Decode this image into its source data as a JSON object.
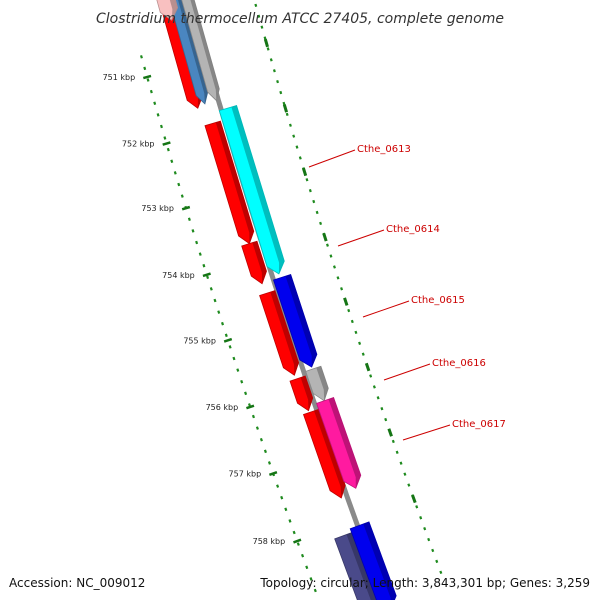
{
  "title": "Clostridium thermocellum ATCC 27405, complete genome",
  "accession": "Accession: NC_009012",
  "topology": "Topology: circular; Length: 3,843,301 bp; Genes: 3,259",
  "ruler": [
    {
      "label": "751 kbp"
    },
    {
      "label": "752 kbp"
    },
    {
      "label": "753 kbp"
    },
    {
      "label": "754 kbp"
    },
    {
      "label": "755 kbp"
    },
    {
      "label": "756 kbp"
    },
    {
      "label": "757 kbp"
    },
    {
      "label": "758 kbp"
    }
  ],
  "gene_labels": [
    {
      "label": "Cthe_0613",
      "color": "#cc0000"
    },
    {
      "label": "Cthe_0614",
      "color": "#cc0000"
    },
    {
      "label": "Cthe_0615",
      "color": "#cc0000"
    },
    {
      "label": "Cthe_0616",
      "color": "#cc0000"
    },
    {
      "label": "Cthe_0617",
      "color": "#cc0000"
    }
  ],
  "colors": {
    "backbone": "#8a8a8a",
    "ruler_dots": "#1e8a1e",
    "cds_red": "#ff0000",
    "cyan": "#00ffff",
    "blue": "#0000ee",
    "grey": "#b4b4b4",
    "pink": "#ff1aa0",
    "steelblue": "#4a86c0",
    "slate": "#4a4a8a",
    "salmon": "#f8c0c0"
  },
  "track_features": [
    {
      "name": "red-cds-arrow",
      "color": "#ff0000"
    },
    {
      "name": "steelblue-arrow",
      "color": "#4a86c0"
    },
    {
      "name": "grey-arrow",
      "color": "#b4b4b4"
    },
    {
      "name": "salmon-arrow",
      "color": "#f8c0c0"
    },
    {
      "name": "red-cds-arrow",
      "color": "#ff0000"
    },
    {
      "name": "cyan-arrow",
      "color": "#00ffff"
    },
    {
      "name": "red-cds-arrow",
      "color": "#ff0000"
    },
    {
      "name": "red-cds-arrow",
      "color": "#ff0000"
    },
    {
      "name": "blue-arrow",
      "color": "#0000ee"
    },
    {
      "name": "red-cds-arrow",
      "color": "#ff0000"
    },
    {
      "name": "grey-arrow",
      "color": "#b4b4b4"
    },
    {
      "name": "red-cds-arrow",
      "color": "#ff0000"
    },
    {
      "name": "pink-arrow",
      "color": "#ff1aa0"
    },
    {
      "name": "slate-arrow",
      "color": "#4a4a8a"
    },
    {
      "name": "blue-arrow",
      "color": "#0000ee"
    }
  ]
}
